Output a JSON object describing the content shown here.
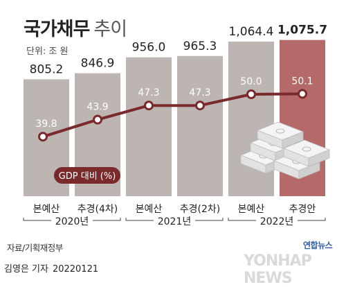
{
  "header": {
    "title_main": "국가채무",
    "title_sub": "추이",
    "unit": "단위: 조 원"
  },
  "footer": {
    "source": "자료/기획재정부",
    "author": "김영은 기자",
    "date": "20220121",
    "logo_ko": "연합뉴스",
    "logo_en": "YONHAP NEWS"
  },
  "colors": {
    "bar": "#bcb5b2",
    "bar_highlight": "#b36a68",
    "line": "#7a2a2a",
    "marker_fill": "#ffffff",
    "label_on_bar": "#ffffff",
    "value_label": "#222222"
  },
  "chart_data": {
    "type": "bar",
    "categories": [
      "본예산",
      "추경(4차)",
      "본예산",
      "추경(2차)",
      "본예산",
      "추경안"
    ],
    "groups": [
      {
        "label": "2020년",
        "span": [
          0,
          1
        ]
      },
      {
        "label": "2021년",
        "span": [
          2,
          3
        ]
      },
      {
        "label": "2022년",
        "span": [
          4,
          5
        ]
      }
    ],
    "values": [
      805.2,
      846.9,
      956.0,
      965.3,
      1064.4,
      1075.7
    ],
    "value_labels": [
      "805.2",
      "846.9",
      "956.0",
      "965.3",
      "1,064.4",
      "1,075.7"
    ],
    "ylim": [
      0,
      1160
    ],
    "highlight_index": 5,
    "series": [
      {
        "name": "GDP 대비 (%)",
        "values": [
          39.8,
          43.9,
          47.3,
          47.3,
          50.0,
          50.1
        ],
        "labels": [
          "39.8",
          "43.9",
          "47.3",
          "47.3",
          "50.0",
          "50.1"
        ],
        "ylim": [
          30,
          55
        ]
      }
    ]
  }
}
